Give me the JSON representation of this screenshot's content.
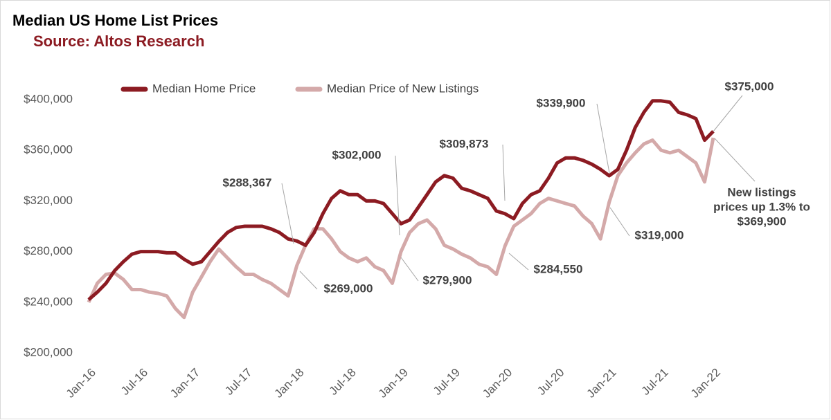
{
  "chart_data": {
    "type": "line",
    "title": "Median US Home List Prices",
    "subtitle": "Source: Altos Research",
    "categories": [
      "Jan-16",
      null,
      null,
      null,
      null,
      null,
      "Jul-16",
      null,
      null,
      null,
      null,
      null,
      "Jan-17",
      null,
      null,
      null,
      null,
      null,
      "Jul-17",
      null,
      null,
      null,
      null,
      null,
      "Jan-18",
      null,
      null,
      null,
      null,
      null,
      "Jul-18",
      null,
      null,
      null,
      null,
      null,
      "Jan-19",
      null,
      null,
      null,
      null,
      null,
      "Jul-19",
      null,
      null,
      null,
      null,
      null,
      "Jan-20",
      null,
      null,
      null,
      null,
      null,
      "Jul-20",
      null,
      null,
      null,
      null,
      null,
      "Jan-21",
      null,
      null,
      null,
      null,
      null,
      "Jul-21",
      null,
      null,
      null,
      null,
      null,
      "Jan-22"
    ],
    "series": [
      {
        "name": "Median Home Price",
        "color": "#8c1b22",
        "values": [
          242000,
          248000,
          255000,
          265000,
          272000,
          278000,
          280000,
          280000,
          280000,
          279000,
          279000,
          274000,
          270000,
          272000,
          280000,
          288000,
          295000,
          299000,
          300000,
          300000,
          300000,
          298000,
          295000,
          290000,
          288367,
          285000,
          295000,
          310000,
          322000,
          328000,
          325000,
          325000,
          320000,
          320000,
          318000,
          310000,
          302000,
          305000,
          315000,
          325000,
          335000,
          340000,
          338000,
          330000,
          328000,
          325000,
          322000,
          312000,
          309873,
          306000,
          318000,
          325000,
          328000,
          338000,
          350000,
          354000,
          354000,
          352000,
          349000,
          345000,
          339900,
          345000,
          360000,
          378000,
          390000,
          399000,
          399000,
          398000,
          390000,
          388000,
          385000,
          368000,
          375000
        ]
      },
      {
        "name": "Median Price of New Listings",
        "color": "#d4a9a9",
        "values": [
          240000,
          255000,
          262000,
          263000,
          258000,
          250000,
          250000,
          248000,
          247000,
          245000,
          235000,
          228000,
          248000,
          260000,
          272000,
          282000,
          275000,
          268000,
          262000,
          262000,
          258000,
          255000,
          250000,
          245000,
          269000,
          285000,
          298000,
          298000,
          290000,
          280000,
          275000,
          272000,
          275000,
          268000,
          265000,
          255000,
          279900,
          295000,
          302000,
          305000,
          298000,
          285000,
          282000,
          278000,
          275000,
          270000,
          268000,
          262000,
          284550,
          300000,
          305000,
          310000,
          318000,
          322000,
          320000,
          318000,
          316000,
          308000,
          302000,
          290000,
          319000,
          340000,
          350000,
          358000,
          365000,
          368000,
          360000,
          358000,
          360000,
          355000,
          350000,
          335000,
          369900
        ]
      }
    ],
    "ylim": [
      200000,
      400000
    ],
    "yticks": [
      {
        "value": 200000,
        "label": "$200,000"
      },
      {
        "value": 240000,
        "label": "$240,000"
      },
      {
        "value": 280000,
        "label": "$280,000"
      },
      {
        "value": 320000,
        "label": "$320,000"
      },
      {
        "value": 360000,
        "label": "$360,000"
      },
      {
        "value": 400000,
        "label": "$400,000"
      }
    ],
    "annotations": [
      {
        "lines": [
          "$375,000"
        ]
      },
      {
        "lines": [
          "$339,900"
        ]
      },
      {
        "lines": [
          "$309,873"
        ]
      },
      {
        "lines": [
          "$302,000"
        ]
      },
      {
        "lines": [
          "$288,367"
        ]
      },
      {
        "lines": [
          "$269,000"
        ]
      },
      {
        "lines": [
          "$279,900"
        ]
      },
      {
        "lines": [
          "$284,550"
        ]
      },
      {
        "lines": [
          "$319,000"
        ]
      },
      {
        "lines": [
          "New listings",
          "prices up 1.3% to",
          "$369,900"
        ]
      }
    ]
  }
}
